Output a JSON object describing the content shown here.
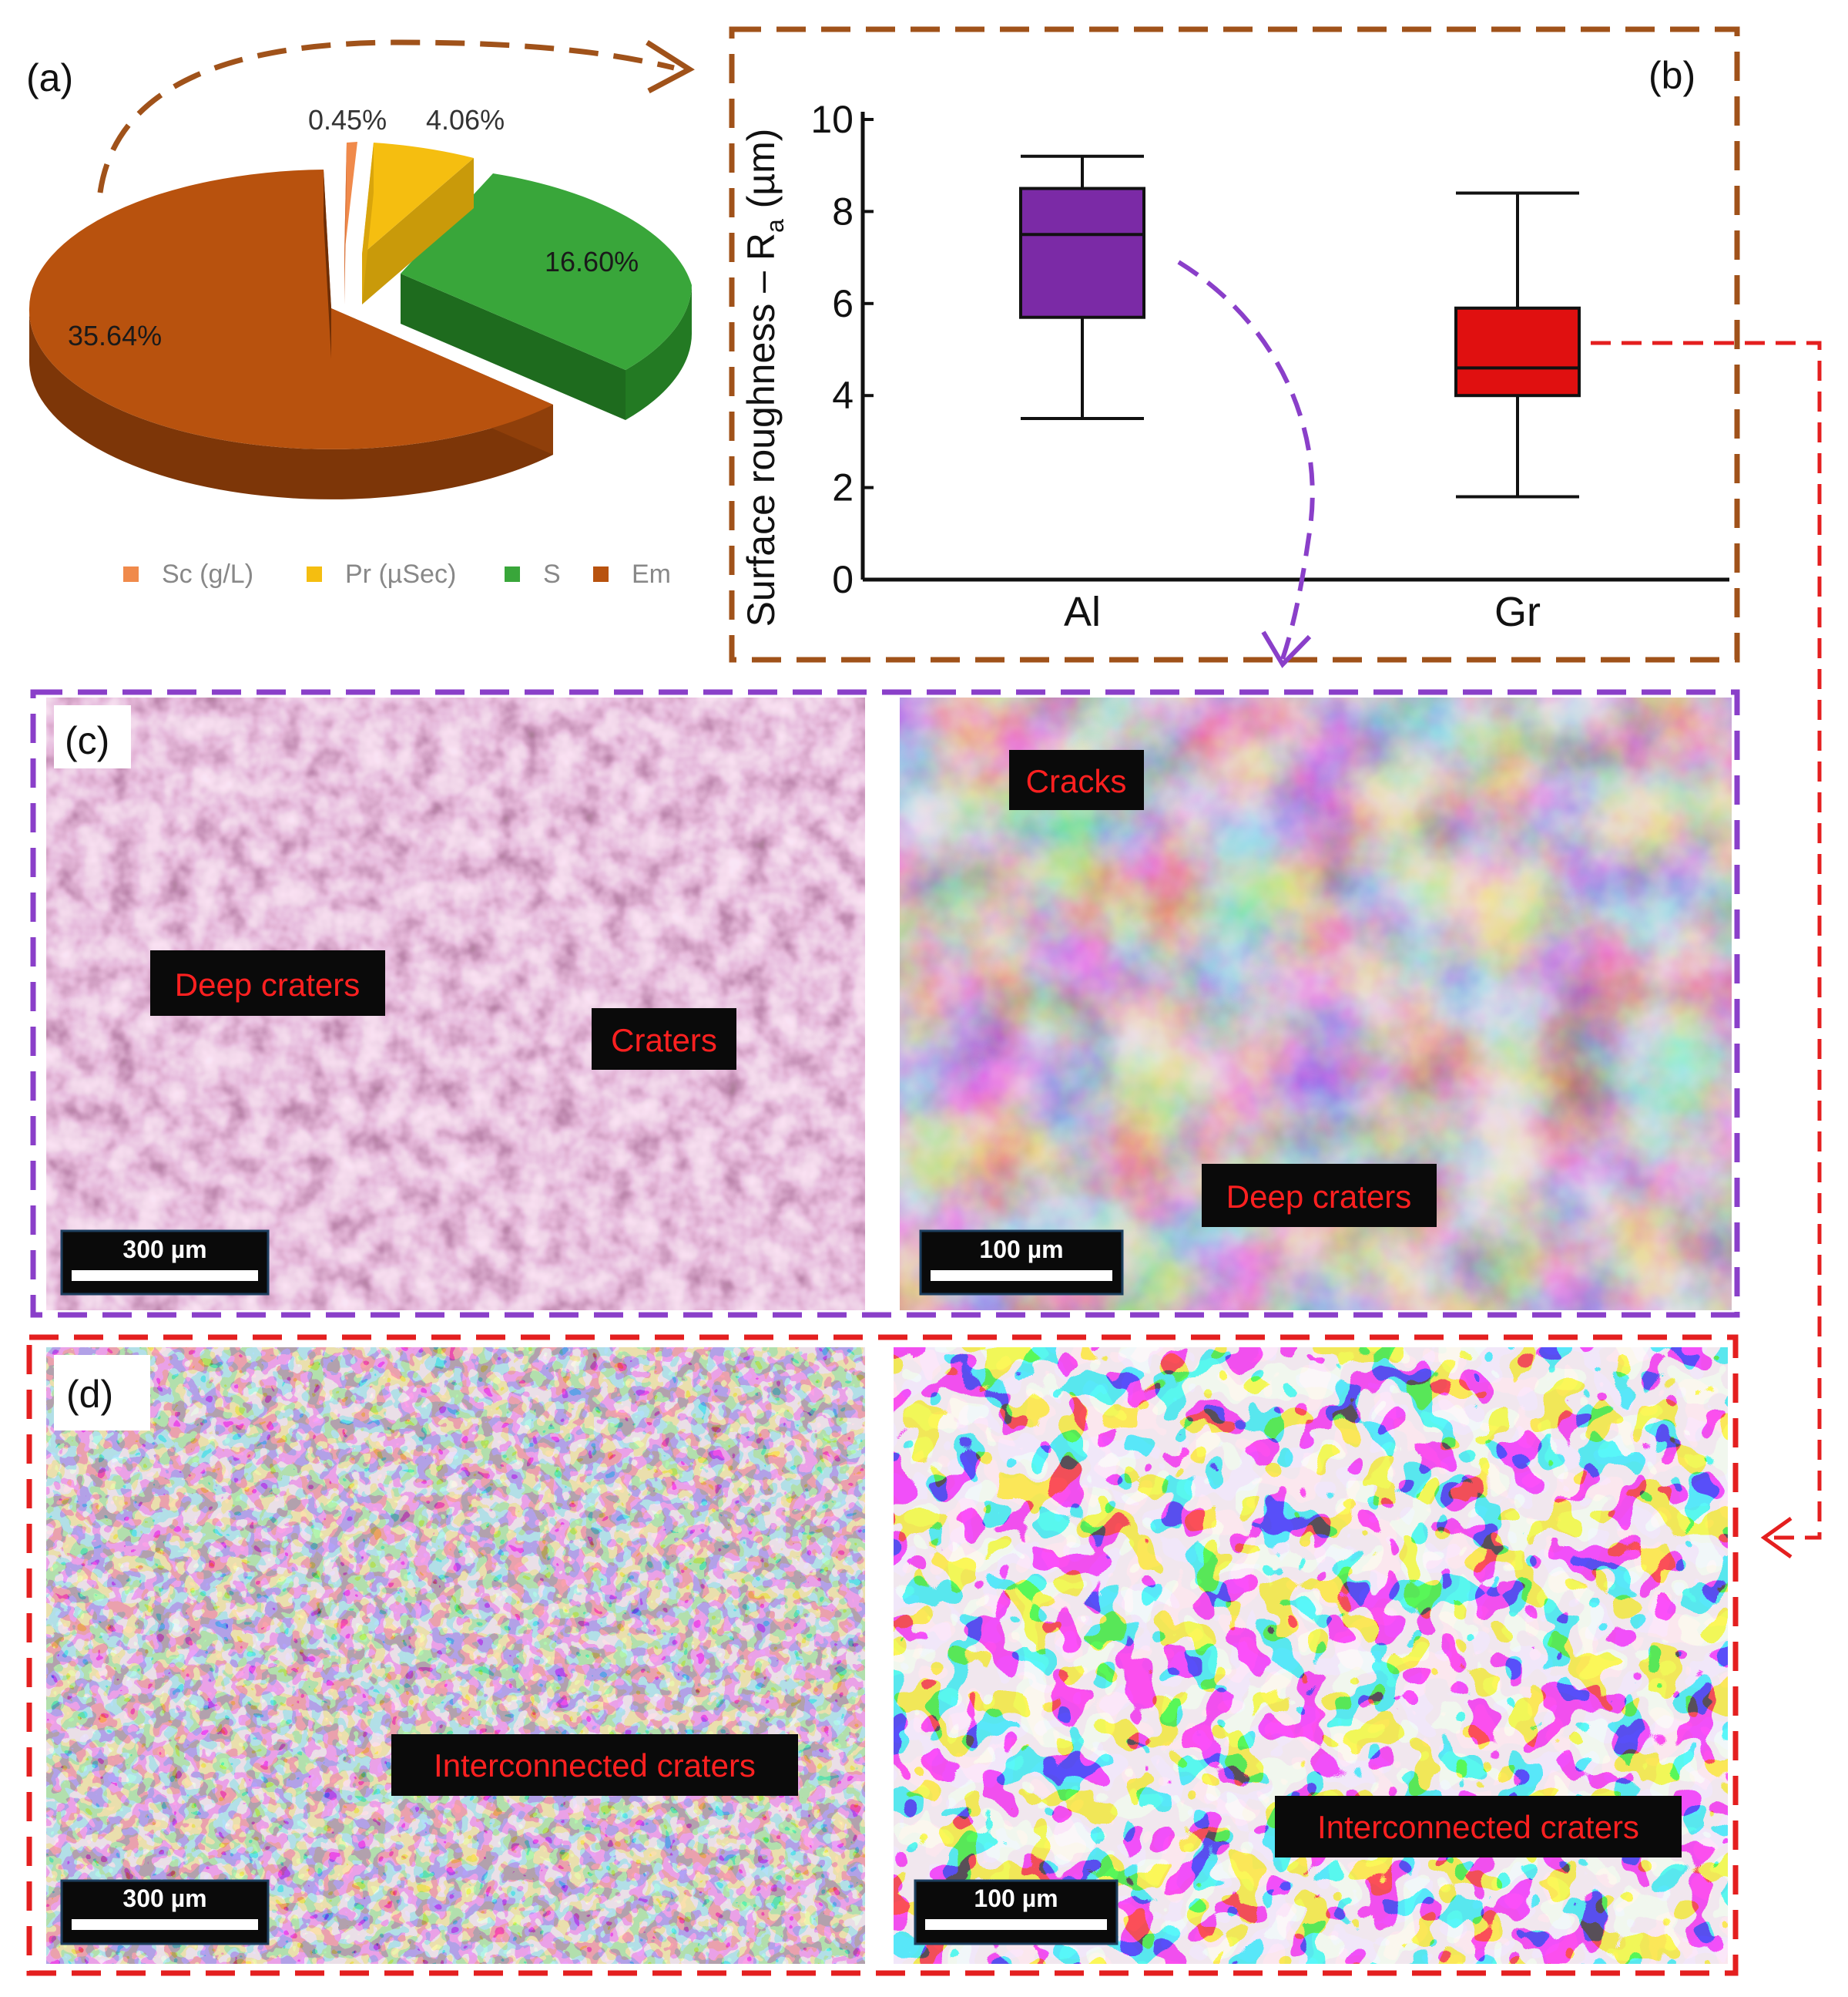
{
  "panels": {
    "a": "(a)",
    "b": "(b)",
    "c": "(c)",
    "d": "(d)"
  },
  "colors": {
    "em": "#b8520e",
    "s": "#39a63a",
    "pr": "#f5be10",
    "sc": "#f08a4b",
    "al_box": "#7b2aa6",
    "gr_box": "#e01010",
    "frame_brown": "#a0521a",
    "frame_purple": "#8a3fc9",
    "frame_red": "#e41f1f",
    "label_bg": "#0a0a0a",
    "label_text": "#ff2020"
  },
  "chart_data": [
    {
      "type": "pie",
      "slices": [
        {
          "name": "Sc (g/L)",
          "label": "0.45%",
          "value": 0.45
        },
        {
          "name": "Pr (µSec)",
          "label": "4.06%",
          "value": 4.06
        },
        {
          "name": "S",
          "label": "16.60%",
          "value": 16.6
        },
        {
          "name": "Em",
          "label": "35.64%",
          "value": 35.64
        }
      ],
      "legend_placement": "bottom",
      "style": "3d-exploded"
    },
    {
      "type": "box",
      "ylabel_main": "Surface roughness – R",
      "ylabel_sub": "a",
      "ylabel_unit": " (µm)",
      "ylim": [
        0,
        10
      ],
      "yticks": [
        "0",
        "2",
        "4",
        "6",
        "8",
        "10"
      ],
      "categories": [
        "Al",
        "Gr"
      ],
      "boxes": [
        {
          "name": "Al",
          "min": 3.5,
          "q1": 5.7,
          "median": 7.5,
          "q3": 8.5,
          "max": 9.2
        },
        {
          "name": "Gr",
          "min": 1.8,
          "q1": 4.0,
          "median": 4.6,
          "q3": 5.9,
          "max": 8.4
        }
      ]
    }
  ],
  "micrographs": {
    "c_left": {
      "scale": "300 µm",
      "labels": [
        "Deep craters",
        "Craters"
      ]
    },
    "c_right": {
      "scale": "100 µm",
      "labels": [
        "Cracks",
        "Deep craters"
      ]
    },
    "d_left": {
      "scale": "300 µm",
      "labels": [
        "Interconnected craters"
      ]
    },
    "d_right": {
      "scale": "100 µm",
      "labels": [
        "Interconnected craters"
      ]
    }
  }
}
